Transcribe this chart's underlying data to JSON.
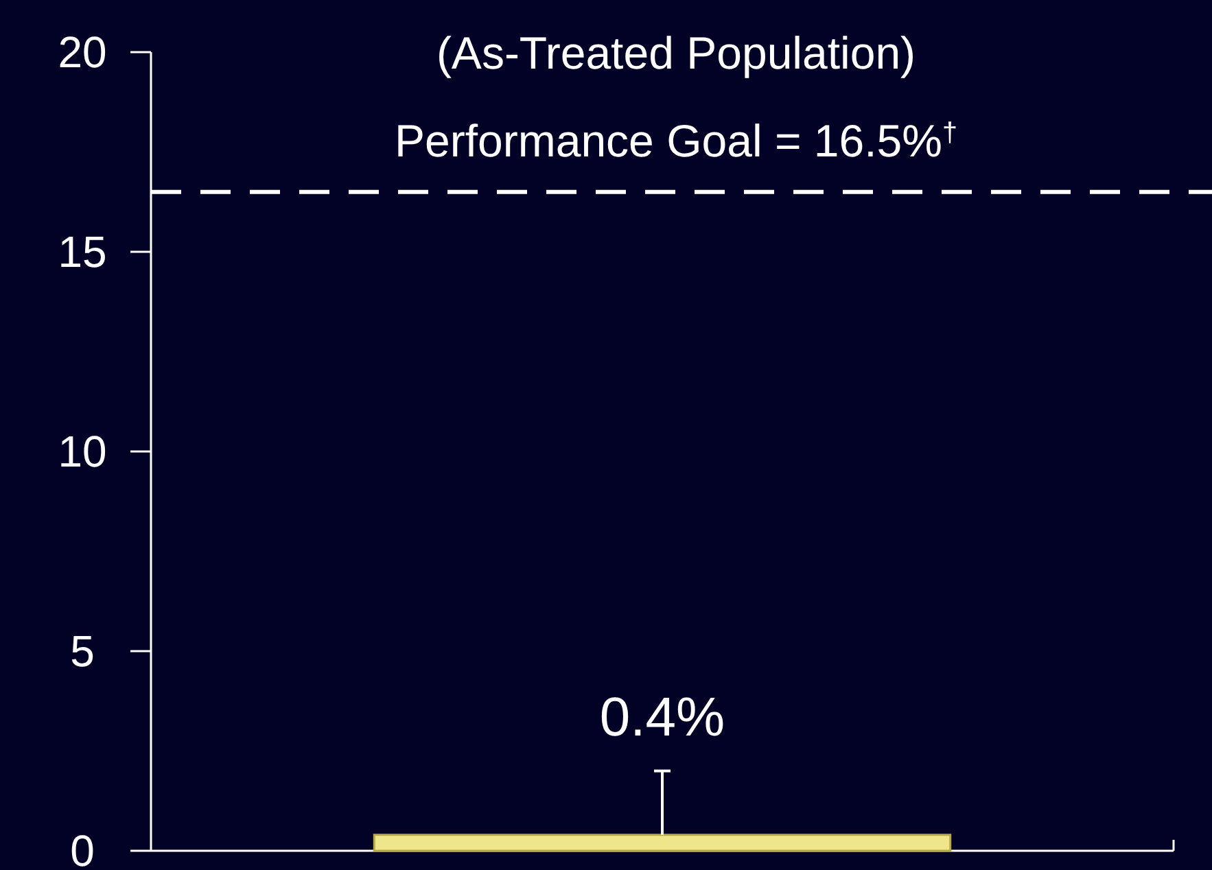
{
  "chart_data": {
    "type": "bar",
    "title": "(As-Treated Population)",
    "categories": [
      null
    ],
    "values": [
      0.4
    ],
    "color": "#efe58a",
    "errors": [
      [
        0.4,
        2.0
      ]
    ],
    "value_labels": [
      "0.4%"
    ],
    "ylim": [
      0,
      20
    ],
    "yticks": [
      0,
      5,
      10,
      15,
      20
    ],
    "ref_lines": [
      {
        "axis": "y",
        "value": 16.5,
        "label": "Performance Goal = 16.5%$^{†}$",
        "color": "#ffffff",
        "line_style": "dashed"
      }
    ],
    "tick_labels": "y"
  }
}
